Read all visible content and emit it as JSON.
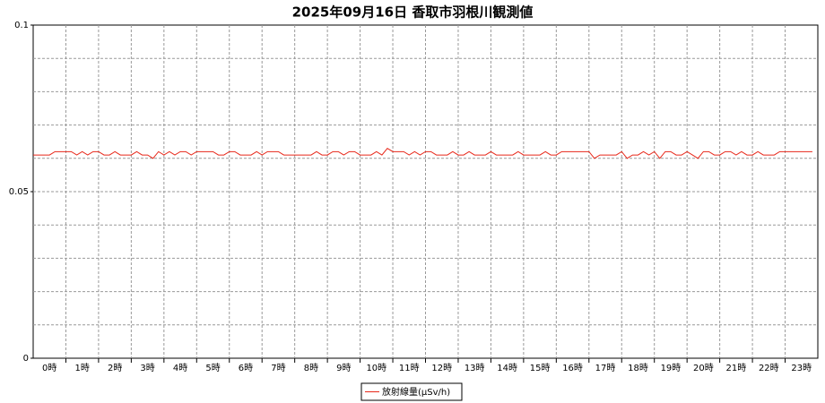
{
  "chart_data": {
    "type": "line",
    "title": "2025年09月16日 香取市羽根川観測値",
    "categories": [
      null,
      null,
      null,
      "0時",
      null,
      null,
      null,
      null,
      null,
      "1時",
      null,
      null,
      null,
      null,
      null,
      "2時",
      null,
      null,
      null,
      null,
      null,
      "3時",
      null,
      null,
      null,
      null,
      null,
      "4時",
      null,
      null,
      null,
      null,
      null,
      "5時",
      null,
      null,
      null,
      null,
      null,
      "6時",
      null,
      null,
      null,
      null,
      null,
      "7時",
      null,
      null,
      null,
      null,
      null,
      "8時",
      null,
      null,
      null,
      null,
      null,
      "9時",
      null,
      null,
      null,
      null,
      null,
      "10時",
      null,
      null,
      null,
      null,
      null,
      "11時",
      null,
      null,
      null,
      null,
      null,
      "12時",
      null,
      null,
      null,
      null,
      null,
      "13時",
      null,
      null,
      null,
      null,
      null,
      "14時",
      null,
      null,
      null,
      null,
      null,
      "15時",
      null,
      null,
      null,
      null,
      null,
      "16時",
      null,
      null,
      null,
      null,
      null,
      "17時",
      null,
      null,
      null,
      null,
      null,
      "18時",
      null,
      null,
      null,
      null,
      null,
      "19時",
      null,
      null,
      null,
      null,
      null,
      "20時",
      null,
      null,
      null,
      null,
      null,
      "21時",
      null,
      null,
      null,
      null,
      null,
      "22時",
      null,
      null,
      null,
      null,
      null,
      "23時",
      null,
      null
    ],
    "series": [
      {
        "name": "放射線量(μSv/h)",
        "color": "#e8281a",
        "values": [
          0.061,
          0.061,
          0.061,
          0.061,
          0.062,
          0.062,
          0.062,
          0.062,
          0.061,
          0.062,
          0.061,
          0.062,
          0.062,
          0.061,
          0.061,
          0.062,
          0.061,
          0.061,
          0.061,
          0.062,
          0.061,
          0.061,
          0.06,
          0.062,
          0.061,
          0.062,
          0.061,
          0.062,
          0.062,
          0.061,
          0.062,
          0.062,
          0.062,
          0.062,
          0.061,
          0.061,
          0.062,
          0.062,
          0.061,
          0.061,
          0.061,
          0.062,
          0.061,
          0.062,
          0.062,
          0.062,
          0.061,
          0.061,
          0.061,
          0.061,
          0.061,
          0.061,
          0.062,
          0.061,
          0.061,
          0.062,
          0.062,
          0.061,
          0.062,
          0.062,
          0.061,
          0.061,
          0.061,
          0.062,
          0.061,
          0.063,
          0.062,
          0.062,
          0.062,
          0.061,
          0.062,
          0.061,
          0.062,
          0.062,
          0.061,
          0.061,
          0.061,
          0.062,
          0.061,
          0.061,
          0.062,
          0.061,
          0.061,
          0.061,
          0.062,
          0.061,
          0.061,
          0.061,
          0.061,
          0.062,
          0.061,
          0.061,
          0.061,
          0.061,
          0.062,
          0.061,
          0.061,
          0.062,
          0.062,
          0.062,
          0.062,
          0.062,
          0.062,
          0.06,
          0.061,
          0.061,
          0.061,
          0.061,
          0.062,
          0.06,
          0.061,
          0.061,
          0.062,
          0.061,
          0.062,
          0.06,
          0.062,
          0.062,
          0.061,
          0.061,
          0.062,
          0.061,
          0.06,
          0.062,
          0.062,
          0.061,
          0.061,
          0.062,
          0.062,
          0.061,
          0.062,
          0.061,
          0.061,
          0.062,
          0.061,
          0.061,
          0.061,
          0.062,
          0.062,
          0.062,
          0.062,
          0.062,
          0.062,
          0.062
        ]
      }
    ],
    "ylim": [
      0,
      0.1
    ],
    "yticks": [
      0,
      0.05,
      0.1
    ],
    "grid": true,
    "y_grid_divisions": 10,
    "x_grid_every": 6,
    "legend": "bottom"
  }
}
